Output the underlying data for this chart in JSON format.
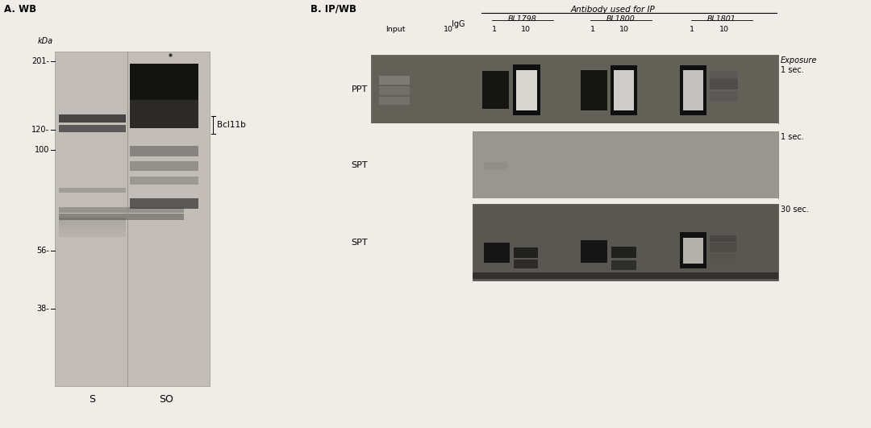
{
  "fig_width": 10.8,
  "fig_height": 5.31,
  "bg_color": "#f0ede8",
  "panel_a": {
    "title": "A. WB",
    "blot_bg": "#c0bbb4",
    "kda_label": "kDa",
    "bcl11b_label": "Bcl11b",
    "col_labels": [
      "S",
      "SO"
    ]
  },
  "panel_b": {
    "title": "B. IP/WB",
    "antibody_label": "Antibody used for IP",
    "ab_labels": [
      "BL1798",
      "BL1800",
      "BL1801"
    ],
    "igg_label": "IgG",
    "input_label": "Input",
    "ppt_label": "PPT",
    "spt_label1": "SPT",
    "spt_label2": "SPT",
    "exposure_label": "Exposure",
    "exp1_label": "1 sec.",
    "exp2_label": "1 sec.",
    "exp3_label": "30 sec."
  }
}
